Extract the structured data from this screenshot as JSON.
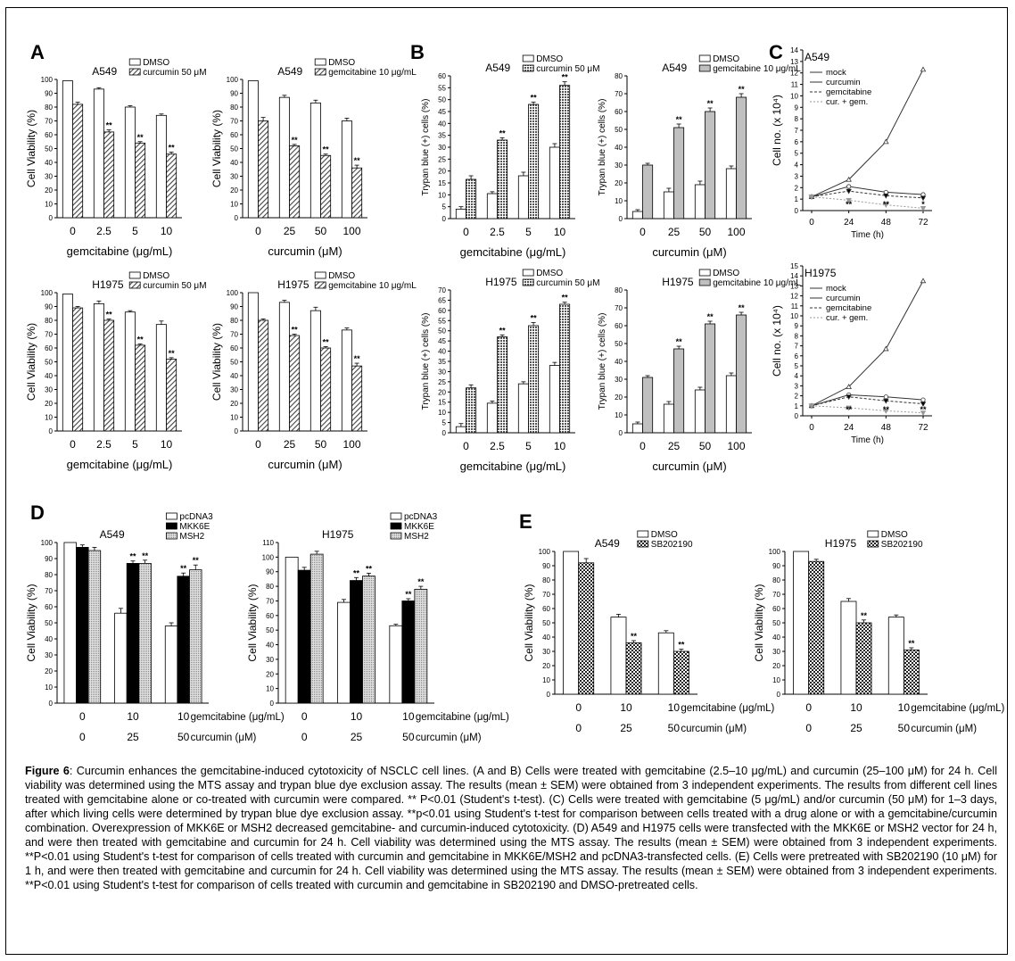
{
  "colors": {
    "dmso": "#ffffff",
    "treated_hatch": "#555555",
    "trypan_gray": "#c0c0c0",
    "black": "#000000"
  },
  "panels": {
    "A": "A",
    "B": "B",
    "C": "C",
    "D": "D",
    "E": "E"
  },
  "caption": {
    "label": "Figure 6",
    "text": ": Curcumin enhances the gemcitabine-induced cytotoxicity of NSCLC cell lines. (A and B) Cells were treated with gemcitabine (2.5–10 μg/mL) and curcumin (25–100 μM) for 24 h. Cell viability was determined using the MTS assay and trypan blue dye exclusion assay. The results (mean ± SEM) were obtained from 3 independent experiments. The results from different cell lines treated with gemcitabine alone or co-treated with curcumin were compared. ** P<0.01 (Student's t-test). (C) Cells were treated with gemcitabine (5 μg/mL) and/or curcumin (50 μM) for 1–3 days, after which living cells were determined by trypan blue dye exclusion assay. **p<0.01 using Student's t-test for comparison between cells treated with a drug alone or with a gemcitabine/curcumin combination. Overexpression of MKK6E or MSH2 decreased gemcitabine- and curcumin-induced cytotoxicity. (D) A549 and H1975 cells were transfected with the MKK6E or MSH2 vector for 24 h, and were then treated with gemcitabine and curcumin for 24 h. Cell viability was determined using the MTS assay. The results (mean ± SEM) were obtained from 3 independent experiments. **P<0.01 using Student's t-test for comparison of cells treated with curcumin and gemcitabine in MKK6E/MSH2 and pcDNA3-transfected cells. (E) Cells were pretreated with SB202190 (10 μM) for 1 h, and were then treated with gemcitabine and curcumin for 24 h. Cell viability was determined using the MTS assay. The results (mean ± SEM) were obtained from 3 independent experiments. **P<0.01 using Student's t-test for comparison of cells treated with curcumin and gemcitabine in SB202190 and DMSO-pretreated cells."
  },
  "chart_data": [
    {
      "id": "A1",
      "type": "bar",
      "cell_line": "A549",
      "ylabel": "Cell Viability (%)",
      "xlabel": "gemcitabine (μg/mL)",
      "categories": [
        "0",
        "2.5",
        "5",
        "10"
      ],
      "ylim": [
        0,
        100
      ],
      "yticks": [
        0,
        10,
        20,
        30,
        40,
        50,
        60,
        70,
        80,
        90,
        100
      ],
      "series": [
        {
          "name": "DMSO",
          "values": [
            99,
            93,
            80,
            74
          ],
          "err": [
            0,
            1,
            1,
            1
          ]
        },
        {
          "name": "curcumin 50 μM",
          "values": [
            82,
            62,
            54,
            46
          ],
          "err": [
            1.5,
            1.5,
            1,
            1.5
          ],
          "sig": [
            false,
            true,
            true,
            true
          ]
        }
      ]
    },
    {
      "id": "A2",
      "type": "bar",
      "cell_line": "A549",
      "ylabel": "Cell Viability (%)",
      "xlabel": "curcumin (μM)",
      "categories": [
        "0",
        "25",
        "50",
        "100"
      ],
      "ylim": [
        0,
        100
      ],
      "yticks": [
        0,
        10,
        20,
        30,
        40,
        50,
        60,
        70,
        80,
        90,
        100
      ],
      "series": [
        {
          "name": "DMSO",
          "values": [
            99,
            87,
            83,
            70
          ],
          "err": [
            0,
            1.5,
            2,
            2
          ]
        },
        {
          "name": "gemcitabine 10 μg/mL",
          "values": [
            70,
            52,
            45,
            36
          ],
          "err": [
            2.5,
            1,
            1,
            2
          ],
          "sig": [
            false,
            true,
            true,
            true
          ]
        }
      ]
    },
    {
      "id": "A3",
      "type": "bar",
      "cell_line": "H1975",
      "ylabel": "Cell Viability (%)",
      "xlabel": "gemcitabine (μg/mL)",
      "categories": [
        "0",
        "2.5",
        "5",
        "10"
      ],
      "ylim": [
        0,
        100
      ],
      "yticks": [
        0,
        10,
        20,
        30,
        40,
        50,
        60,
        70,
        80,
        90,
        100
      ],
      "series": [
        {
          "name": "DMSO",
          "values": [
            99,
            92,
            86,
            77
          ],
          "err": [
            0,
            2,
            1,
            2.5
          ]
        },
        {
          "name": "curcumin 50 μM",
          "values": [
            89,
            80,
            62,
            52
          ],
          "err": [
            1,
            1,
            1,
            1
          ],
          "sig": [
            false,
            true,
            true,
            true
          ]
        }
      ]
    },
    {
      "id": "A4",
      "type": "bar",
      "cell_line": "H1975",
      "ylabel": "Cell Viability (%)",
      "xlabel": "curcumin (μM)",
      "categories": [
        "0",
        "25",
        "50",
        "100"
      ],
      "ylim": [
        0,
        100
      ],
      "yticks": [
        0,
        10,
        20,
        30,
        40,
        50,
        60,
        70,
        80,
        90,
        100
      ],
      "series": [
        {
          "name": "DMSO",
          "values": [
            100,
            93,
            87,
            73
          ],
          "err": [
            0,
            1.5,
            2.5,
            1.5
          ]
        },
        {
          "name": "gemcitabine 10 μg/mL",
          "values": [
            80,
            69,
            60,
            47
          ],
          "err": [
            1,
            1,
            1,
            2
          ],
          "sig": [
            false,
            true,
            true,
            true
          ]
        }
      ]
    },
    {
      "id": "B1",
      "type": "bar",
      "cell_line": "A549",
      "ylabel": "Trypan blue (+) cells (%)",
      "xlabel": "gemcitabine (μg/mL)",
      "categories": [
        "0",
        "2.5",
        "5",
        "10"
      ],
      "ylim": [
        0,
        60
      ],
      "yticks": [
        0,
        5,
        10,
        15,
        20,
        25,
        30,
        35,
        40,
        45,
        50,
        55,
        60
      ],
      "series": [
        {
          "name": "DMSO",
          "values": [
            4,
            10.5,
            18,
            30
          ],
          "err": [
            1,
            0.8,
            1.5,
            1.5
          ]
        },
        {
          "name": "curcumin 50 μM",
          "values": [
            16.5,
            33,
            48,
            56
          ],
          "err": [
            1.5,
            1,
            1,
            1.5
          ],
          "sig": [
            false,
            true,
            true,
            true
          ]
        }
      ]
    },
    {
      "id": "B2",
      "type": "bar",
      "cell_line": "A549",
      "ylabel": "Trypan blue (+) cells (%)",
      "xlabel": "curcumin (μM)",
      "categories": [
        "0",
        "25",
        "50",
        "100"
      ],
      "ylim": [
        0,
        80
      ],
      "yticks": [
        0,
        10,
        20,
        30,
        40,
        50,
        60,
        70,
        80
      ],
      "series": [
        {
          "name": "DMSO",
          "values": [
            4,
            15,
            19,
            28
          ],
          "err": [
            1,
            2,
            2,
            1.5
          ]
        },
        {
          "name": "gemcitabine 10 μg/mL",
          "values": [
            30,
            51,
            60,
            68
          ],
          "err": [
            1,
            2,
            2,
            2
          ],
          "sig": [
            false,
            true,
            true,
            true
          ]
        }
      ]
    },
    {
      "id": "B3",
      "type": "bar",
      "cell_line": "H1975",
      "ylabel": "Trypan blue (+) cells (%)",
      "xlabel": "gemcitabine (μg/mL)",
      "categories": [
        "0",
        "2.5",
        "5",
        "10"
      ],
      "ylim": [
        0,
        70
      ],
      "yticks": [
        0,
        5,
        10,
        15,
        20,
        25,
        30,
        35,
        40,
        45,
        50,
        55,
        60,
        65,
        70
      ],
      "series": [
        {
          "name": "DMSO",
          "values": [
            3,
            14.5,
            24,
            33
          ],
          "err": [
            1.5,
            1,
            1,
            1.5
          ]
        },
        {
          "name": "curcumin 50 μM",
          "values": [
            22,
            47,
            52.5,
            63
          ],
          "err": [
            1.5,
            1,
            1.5,
            1
          ],
          "sig": [
            false,
            true,
            true,
            true
          ]
        }
      ]
    },
    {
      "id": "B4",
      "type": "bar",
      "cell_line": "H1975",
      "ylabel": "Trypan blue (+) cells (%)",
      "xlabel": "curcumin (μM)",
      "categories": [
        "0",
        "25",
        "50",
        "100"
      ],
      "ylim": [
        0,
        80
      ],
      "yticks": [
        0,
        10,
        20,
        30,
        40,
        50,
        60,
        70,
        80
      ],
      "series": [
        {
          "name": "DMSO",
          "values": [
            5,
            16,
            24,
            32
          ],
          "err": [
            1,
            1.5,
            1.5,
            1.5
          ]
        },
        {
          "name": "gemcitabine 10 μg/mL",
          "values": [
            31,
            47,
            61,
            66
          ],
          "err": [
            1,
            1.5,
            1.5,
            1.5
          ],
          "sig": [
            false,
            true,
            true,
            true
          ]
        }
      ]
    },
    {
      "id": "C1",
      "type": "line",
      "cell_line": "A549",
      "ylabel": "Cell no. (x 10⁴)",
      "xlabel": "Time (h)",
      "x": [
        0,
        24,
        48,
        72
      ],
      "ylim": [
        0,
        14
      ],
      "yticks": [
        0,
        1,
        2,
        3,
        4,
        5,
        6,
        7,
        8,
        9,
        10,
        11,
        12,
        13,
        14
      ],
      "series": [
        {
          "name": "mock",
          "values": [
            1.2,
            2.7,
            6,
            12.3
          ]
        },
        {
          "name": "curcumin",
          "values": [
            1.2,
            2.1,
            1.6,
            1.4
          ]
        },
        {
          "name": "gemcitabine",
          "values": [
            1.2,
            1.7,
            1.3,
            1.1
          ]
        },
        {
          "name": "cur. + gem.",
          "values": [
            1.2,
            0.9,
            0.5,
            0.2
          ]
        }
      ],
      "sig_labels": [
        {
          "x": 24,
          "label": "**"
        },
        {
          "x": 48,
          "label": "**"
        },
        {
          "x": 72,
          "label": "*"
        }
      ]
    },
    {
      "id": "C2",
      "type": "line",
      "cell_line": "H1975",
      "ylabel": "Cell no. (x 10⁴)",
      "xlabel": "Time (h)",
      "x": [
        0,
        24,
        48,
        72
      ],
      "ylim": [
        0,
        15
      ],
      "yticks": [
        0,
        1,
        2,
        3,
        4,
        5,
        6,
        7,
        8,
        9,
        10,
        11,
        12,
        13,
        14,
        15
      ],
      "series": [
        {
          "name": "mock",
          "values": [
            1,
            2.9,
            6.7,
            13.5
          ]
        },
        {
          "name": "curcumin",
          "values": [
            1,
            2.1,
            1.9,
            1.6
          ]
        },
        {
          "name": "gemcitabine",
          "values": [
            1,
            1.9,
            1.5,
            1.2
          ]
        },
        {
          "name": "cur. + gem.",
          "values": [
            1,
            0.8,
            0.5,
            0.3
          ]
        }
      ],
      "sig_labels": [
        {
          "x": 24,
          "label": "**"
        },
        {
          "x": 48,
          "label": "**"
        },
        {
          "x": 72,
          "label": "**"
        }
      ]
    },
    {
      "id": "D1",
      "type": "bar",
      "cell_line": "A549",
      "ylabel": "Cell Viability (%)",
      "categories": [
        "0",
        "10",
        "10"
      ],
      "categories2": [
        "0",
        "25",
        "50"
      ],
      "row_labels": [
        "gemcitabine (μg/mL)",
        "curcumin (μM)"
      ],
      "ylim": [
        0,
        100
      ],
      "yticks": [
        0,
        10,
        20,
        30,
        40,
        50,
        60,
        70,
        80,
        90,
        100
      ],
      "series": [
        {
          "name": "pcDNA3",
          "values": [
            100,
            56,
            48
          ],
          "err": [
            0,
            3,
            2
          ]
        },
        {
          "name": "MKK6E",
          "values": [
            97,
            87,
            79
          ],
          "err": [
            1.5,
            1.5,
            2
          ],
          "sig": [
            false,
            true,
            true
          ]
        },
        {
          "name": "MSH2",
          "values": [
            95,
            87,
            83
          ],
          "err": [
            2,
            2,
            3
          ],
          "sig": [
            false,
            true,
            true
          ]
        }
      ]
    },
    {
      "id": "D2",
      "type": "bar",
      "cell_line": "H1975",
      "ylabel": "Cell Viability (%)",
      "categories": [
        "0",
        "10",
        "10"
      ],
      "categories2": [
        "0",
        "25",
        "50"
      ],
      "row_labels": [
        "gemcitabine (μg/mL)",
        "curcumin (μM)"
      ],
      "ylim": [
        0,
        110
      ],
      "yticks": [
        0,
        10,
        20,
        30,
        40,
        50,
        60,
        70,
        80,
        90,
        100,
        110
      ],
      "series": [
        {
          "name": "pcDNA3",
          "values": [
            100,
            69,
            53
          ],
          "err": [
            0,
            2,
            1
          ]
        },
        {
          "name": "MKK6E",
          "values": [
            91,
            84,
            70
          ],
          "err": [
            2,
            2,
            1.5
          ],
          "sig": [
            false,
            true,
            true
          ]
        },
        {
          "name": "MSH2",
          "values": [
            102,
            87,
            78
          ],
          "err": [
            2,
            2,
            2
          ],
          "sig": [
            false,
            true,
            true
          ]
        }
      ]
    },
    {
      "id": "E1",
      "type": "bar",
      "cell_line": "A549",
      "ylabel": "Cell Viability (%)",
      "categories": [
        "0",
        "10",
        "10"
      ],
      "categories2": [
        "0",
        "25",
        "50"
      ],
      "row_labels": [
        "gemcitabine (μg/mL)",
        "curcumin (μM)"
      ],
      "ylim": [
        0,
        100
      ],
      "yticks": [
        0,
        10,
        20,
        30,
        40,
        50,
        60,
        70,
        80,
        90,
        100
      ],
      "series": [
        {
          "name": "DMSO",
          "values": [
            100,
            54,
            43
          ],
          "err": [
            0,
            2,
            1.5
          ]
        },
        {
          "name": "SB202190",
          "values": [
            92,
            36,
            30
          ],
          "err": [
            3,
            1.5,
            1.5
          ],
          "sig": [
            false,
            true,
            true
          ]
        }
      ]
    },
    {
      "id": "E2",
      "type": "bar",
      "cell_line": "H1975",
      "ylabel": "Cell Viability (%)",
      "categories": [
        "0",
        "10",
        "10"
      ],
      "categories2": [
        "0",
        "25",
        "50"
      ],
      "row_labels": [
        "gemcitabine (μg/mL)",
        "curcumin (μM)"
      ],
      "ylim": [
        0,
        100
      ],
      "yticks": [
        0,
        10,
        20,
        30,
        40,
        50,
        60,
        70,
        80,
        90,
        100
      ],
      "series": [
        {
          "name": "DMSO",
          "values": [
            100,
            65,
            54
          ],
          "err": [
            0,
            2,
            1.5
          ]
        },
        {
          "name": "SB202190",
          "values": [
            93,
            50,
            31
          ],
          "err": [
            1.5,
            2,
            1.5
          ],
          "sig": [
            false,
            true,
            true
          ]
        }
      ]
    }
  ]
}
